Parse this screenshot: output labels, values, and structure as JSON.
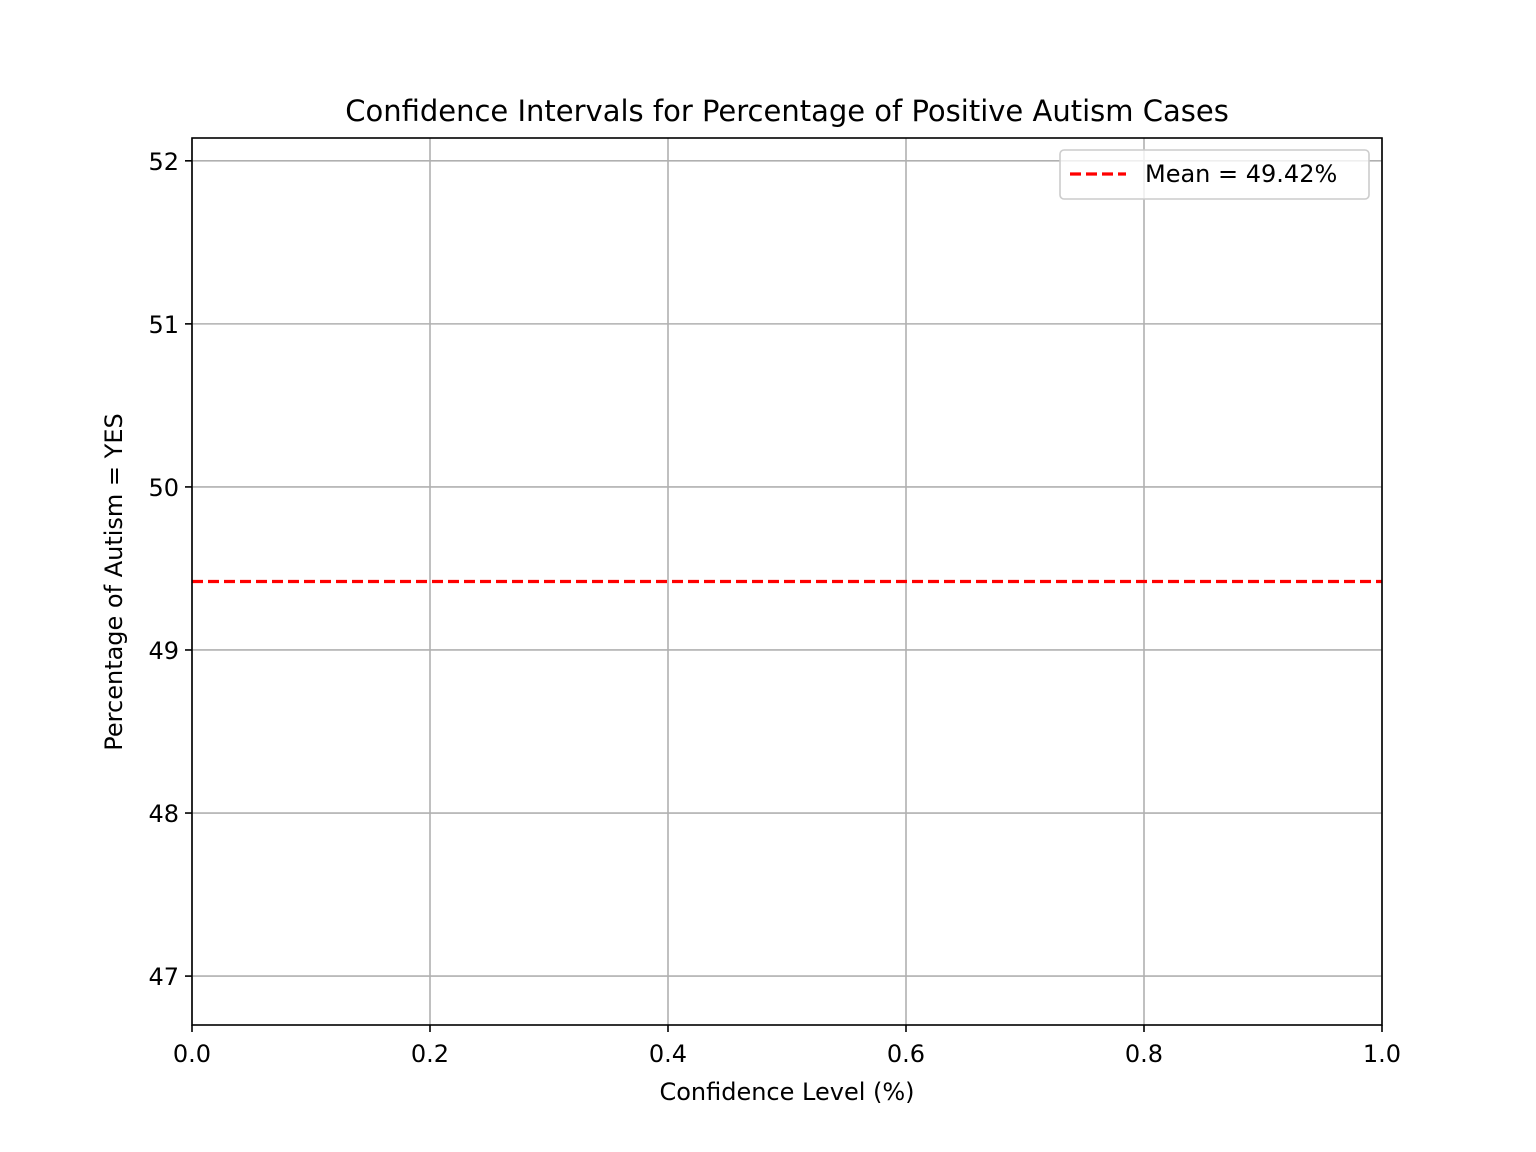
{
  "chart_data": {
    "type": "line",
    "title": "Confidence Intervals for Percentage of Positive Autism Cases",
    "xlabel": "Confidence Level (%)",
    "ylabel": "Percentage of Autism = YES",
    "xlim": [
      0.0,
      1.0
    ],
    "ylim": [
      46.7,
      52.14
    ],
    "x_ticks": [
      0.0,
      0.2,
      0.4,
      0.6,
      0.8,
      1.0
    ],
    "x_tick_labels": [
      "0.0",
      "0.2",
      "0.4",
      "0.6",
      "0.8",
      "1.0"
    ],
    "y_ticks": [
      47,
      48,
      49,
      50,
      51,
      52
    ],
    "y_tick_labels": [
      "47",
      "48",
      "49",
      "50",
      "51",
      "52"
    ],
    "grid": true,
    "legend_position": "top-right",
    "series": [
      {
        "name": "Mean = 49.42%",
        "style": "dashed",
        "color": "#ff0000",
        "x": [
          0.0,
          1.0
        ],
        "values": [
          49.42,
          49.42
        ]
      }
    ]
  }
}
